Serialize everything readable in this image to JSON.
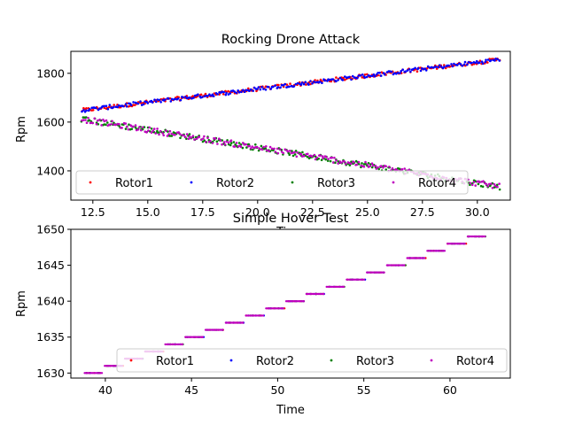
{
  "chart_data": [
    {
      "type": "scatter",
      "title": "Rocking Drone Attack",
      "xlabel": "Time",
      "ylabel": "Rpm",
      "xlim": [
        11.5,
        31.5
      ],
      "ylim": [
        1280,
        1890
      ],
      "xticks": [
        "12.5",
        "15.0",
        "17.5",
        "20.0",
        "22.5",
        "25.0",
        "27.5",
        "30.0"
      ],
      "yticks": [
        "1400",
        "1600",
        "1800"
      ],
      "legend_placement": "lower-center",
      "series": [
        {
          "name": "Rotor1",
          "color": "#ff0000",
          "start": [
            12.0,
            1648
          ],
          "end": [
            31.0,
            1856
          ],
          "noise": 8
        },
        {
          "name": "Rotor2",
          "color": "#0000ff",
          "start": [
            12.0,
            1648
          ],
          "end": [
            31.0,
            1856
          ],
          "noise": 8
        },
        {
          "name": "Rotor3",
          "color": "#008000",
          "start": [
            12.0,
            1612
          ],
          "end": [
            31.0,
            1335
          ],
          "noise": 12
        },
        {
          "name": "Rotor4",
          "color": "#bf00bf",
          "start": [
            12.0,
            1612
          ],
          "end": [
            31.0,
            1335
          ],
          "noise": 12
        }
      ]
    },
    {
      "type": "scatter",
      "title": "Simple Hover Test",
      "xlabel": "Time",
      "ylabel": "Rpm",
      "xlim": [
        38,
        63.5
      ],
      "ylim": [
        1629.3,
        1650
      ],
      "xticks": [
        "40",
        "45",
        "50",
        "55",
        "60"
      ],
      "yticks": [
        "1630",
        "1635",
        "1640",
        "1645",
        "1650"
      ],
      "legend_placement": "lower-right",
      "steps": {
        "x_start": 38.8,
        "x_end": 62.2,
        "y_start": 1630,
        "y_end": 1649
      },
      "series": [
        {
          "name": "Rotor1",
          "color": "#ff0000"
        },
        {
          "name": "Rotor2",
          "color": "#0000ff"
        },
        {
          "name": "Rotor3",
          "color": "#008000"
        },
        {
          "name": "Rotor4",
          "color": "#bf00bf"
        }
      ]
    }
  ]
}
